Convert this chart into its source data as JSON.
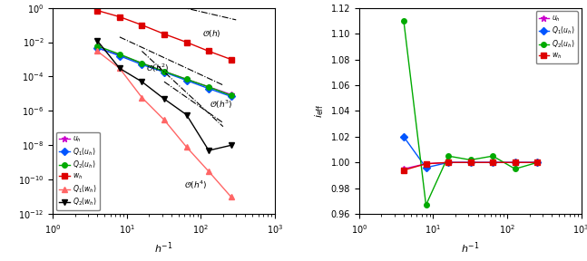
{
  "left": {
    "xlabel": "$h^{-1}$",
    "xlim": [
      1,
      1000
    ],
    "ylim": [
      1e-12,
      1.0
    ],
    "series": {
      "u_h": {
        "x": [
          4,
          8,
          16,
          32,
          64,
          128,
          256
        ],
        "y": [
          0.0045,
          0.0018,
          0.0006,
          0.0002,
          7e-05,
          2.5e-05,
          9e-06
        ],
        "color": "#cc00cc",
        "marker": "*",
        "markersize": 5,
        "linestyle": "-",
        "label": "$u_h$"
      },
      "Q1_u_h": {
        "x": [
          4,
          8,
          16,
          32,
          64,
          128,
          256
        ],
        "y": [
          0.0048,
          0.0016,
          0.0005,
          0.00018,
          6e-05,
          2e-05,
          7e-06
        ],
        "color": "#0055ff",
        "marker": "D",
        "markersize": 4,
        "linestyle": "-",
        "label": "$Q_1(u_h)$"
      },
      "Q2_u_h": {
        "x": [
          4,
          8,
          16,
          32,
          64,
          128,
          256
        ],
        "y": [
          0.006,
          0.002,
          0.0006,
          0.0002,
          7e-05,
          2.5e-05,
          8e-06
        ],
        "color": "#00aa00",
        "marker": "o",
        "markersize": 4,
        "linestyle": "-",
        "label": "$Q_2(u_h)$"
      },
      "w_h": {
        "x": [
          4,
          8,
          16,
          32,
          64,
          128,
          256
        ],
        "y": [
          0.7,
          0.3,
          0.1,
          0.03,
          0.01,
          0.003,
          0.001
        ],
        "color": "#dd0000",
        "marker": "s",
        "markersize": 4,
        "linestyle": "-",
        "label": "$w_h$"
      },
      "Q1_w_h": {
        "x": [
          4,
          8,
          16,
          32,
          64,
          128,
          256
        ],
        "y": [
          0.003,
          0.0003,
          6e-06,
          3e-07,
          8e-09,
          3e-10,
          1e-11
        ],
        "color": "#ff6666",
        "marker": "^",
        "markersize": 4,
        "linestyle": "-",
        "label": "$Q_1(w_h)$"
      },
      "Q2_w_h": {
        "x": [
          4,
          8,
          16,
          32,
          64,
          128,
          256
        ],
        "y": [
          0.012,
          0.0003,
          5e-05,
          5e-06,
          6e-07,
          5e-09,
          1e-08
        ],
        "color": "#000000",
        "marker": "v",
        "markersize": 4,
        "linestyle": "-",
        "label": "$Q_2(w_h)$"
      }
    }
  },
  "right": {
    "xlabel": "$h^{-1}$",
    "ylabel": "$i_\\mathrm{eff}$",
    "xlim": [
      1,
      1000
    ],
    "ylim": [
      0.96,
      1.12
    ],
    "yticks": [
      0.96,
      0.98,
      1.0,
      1.02,
      1.04,
      1.06,
      1.08,
      1.1,
      1.12
    ],
    "series": {
      "u_h": {
        "x": [
          4,
          8,
          16,
          32,
          64,
          128,
          256
        ],
        "y": [
          0.995,
          0.999,
          1.0,
          1.0,
          1.0,
          1.0,
          1.0
        ],
        "color": "#cc00cc",
        "marker": "*",
        "markersize": 5,
        "linestyle": "-",
        "label": "$u_h$"
      },
      "Q1_u_h": {
        "x": [
          4,
          8,
          16,
          32,
          64,
          128,
          256
        ],
        "y": [
          1.02,
          0.996,
          1.0,
          1.0,
          1.0,
          1.0,
          1.0
        ],
        "color": "#0055ff",
        "marker": "D",
        "markersize": 4,
        "linestyle": "-",
        "label": "$Q_1(u_h)$"
      },
      "Q2_u_h": {
        "x": [
          4,
          8,
          16,
          32,
          64,
          128,
          256
        ],
        "y": [
          1.11,
          0.967,
          1.005,
          1.002,
          1.005,
          0.995,
          1.0
        ],
        "color": "#00aa00",
        "marker": "o",
        "markersize": 4,
        "linestyle": "-",
        "label": "$Q_2(u_h)$"
      },
      "w_h": {
        "x": [
          4,
          8,
          16,
          32,
          64,
          128,
          256
        ],
        "y": [
          0.994,
          0.999,
          1.0,
          1.0,
          1.0,
          1.0,
          1.0
        ],
        "color": "#dd0000",
        "marker": "s",
        "markersize": 4,
        "linestyle": "-",
        "label": "$w_h$"
      }
    }
  }
}
